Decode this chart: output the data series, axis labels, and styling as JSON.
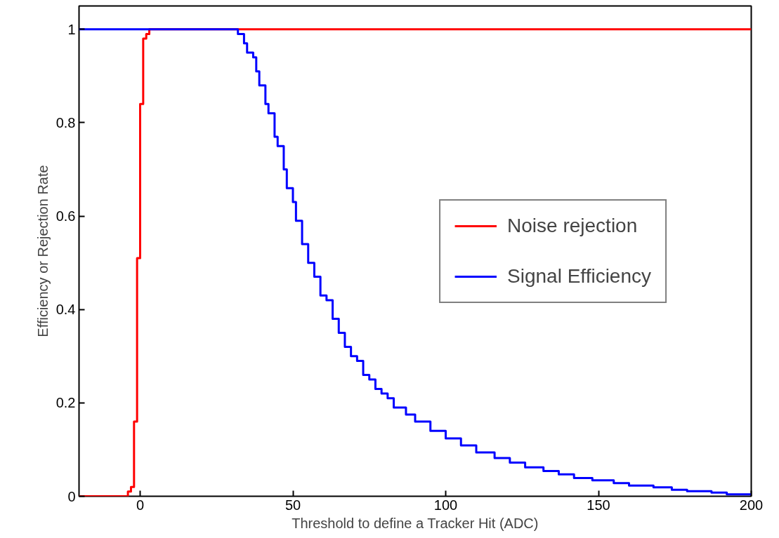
{
  "chart_data": {
    "type": "step",
    "xlabel": "Threshold to define a Tracker Hit (ADC)",
    "ylabel": "Efficiency or Rejection Rate",
    "xlim": [
      -20,
      200
    ],
    "ylim": [
      0,
      1.05
    ],
    "xticks": [
      0,
      50,
      100,
      150,
      200
    ],
    "yticks": [
      0,
      0.2,
      0.4,
      0.6,
      0.8,
      1
    ],
    "grid": false,
    "legend": "right",
    "line_style": "solid",
    "marker": "none",
    "series": [
      {
        "name": "Noise rejection",
        "color": "#ff0000",
        "x": [
          -20,
          -4,
          -3,
          -2,
          -1,
          0,
          1,
          2,
          3,
          200
        ],
        "values": [
          0,
          0.01,
          0.02,
          0.16,
          0.51,
          0.84,
          0.98,
          0.99,
          1,
          1
        ]
      },
      {
        "name": "Signal Efficiency",
        "color": "#0000ff",
        "x": [
          -20,
          28,
          32,
          34,
          35,
          37,
          38,
          39,
          41,
          42,
          44,
          45,
          47,
          48,
          50,
          51,
          53,
          55,
          57,
          59,
          61,
          63,
          65,
          67,
          69,
          71,
          73,
          75,
          77,
          79,
          81,
          83,
          87,
          90,
          95,
          100,
          105,
          110,
          116,
          121,
          126,
          132,
          137,
          142,
          148,
          155,
          160,
          168,
          174,
          179,
          187,
          192,
          200
        ],
        "values": [
          1,
          1,
          0.99,
          0.97,
          0.95,
          0.94,
          0.91,
          0.88,
          0.84,
          0.82,
          0.77,
          0.75,
          0.7,
          0.66,
          0.63,
          0.59,
          0.54,
          0.5,
          0.47,
          0.43,
          0.42,
          0.38,
          0.35,
          0.32,
          0.3,
          0.29,
          0.26,
          0.25,
          0.23,
          0.22,
          0.21,
          0.19,
          0.175,
          0.16,
          0.14,
          0.124,
          0.109,
          0.094,
          0.082,
          0.072,
          0.062,
          0.054,
          0.047,
          0.039,
          0.034,
          0.028,
          0.023,
          0.019,
          0.014,
          0.011,
          0.008,
          0.004,
          0.004
        ]
      }
    ]
  }
}
